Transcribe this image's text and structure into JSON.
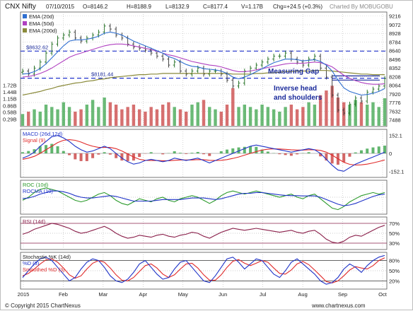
{
  "header": {
    "symbol": "CNX Nifty",
    "date": "07/10/2015",
    "open": "O=8146.2",
    "high": "H=8188.9",
    "low": "L=8132.9",
    "close": "C=8177.4",
    "volume": "V=1.17B",
    "change": "Chg=+24.5 (+0.3%)",
    "credit_top": "Charted By MOBUGOBU"
  },
  "footer": {
    "copyright": "© Copyright 2015 ChartNexus",
    "brand": "www.chartnexus.com"
  },
  "colors": {
    "ema20": "#2f6fd0",
    "ema50": "#b040c0",
    "ema200": "#8a8a3a",
    "bar_up": "#3aa34a",
    "bar_down": "#c84040",
    "macd": "#1f33c8",
    "signal": "#e02a2a",
    "rsi": "#8a1f4a",
    "stoch_k": "#1f33c8",
    "stoch_d": "#e02a2a",
    "roc": "#2a9a2a",
    "rocma": "#1f33c8",
    "annotation": "#1a2a9a"
  },
  "chart_data": [
    {
      "type": "line",
      "panel": "price",
      "legend": [
        "EMA (20d)",
        "EMA (50d)",
        "EMA (200d)"
      ],
      "y_ticks": [
        9216,
        9072,
        8928,
        8784,
        8640,
        8496,
        8352,
        8208,
        8064,
        7920,
        7776,
        7632,
        7488
      ],
      "ylim": [
        7400,
        9260
      ],
      "volume_ticks": [
        "1.72B",
        "1.44B",
        "1.15B",
        "0.86B",
        "0.58B",
        "0.29B"
      ],
      "x_labels": [
        "2015",
        "Feb",
        "Mar",
        "Apr",
        "May",
        "Jun",
        "Jul",
        "Aug",
        "Sep",
        "Oct"
      ],
      "price_labels": [
        "$8632.62",
        "$8181.44"
      ],
      "reference_levels": [
        8632.62,
        8181.44
      ],
      "annotations": [
        "Measuring Gap",
        "Inverse head",
        "and shoulders"
      ],
      "close_approx": [
        8300,
        8250,
        8350,
        8450,
        8600,
        8750,
        8850,
        8900,
        8950,
        8850,
        8800,
        8850,
        8900,
        8950,
        9050,
        9000,
        8900,
        8850,
        8750,
        8700,
        8680,
        8650,
        8600,
        8550,
        8500,
        8400,
        8450,
        8300,
        8250,
        8300,
        8350,
        8250,
        8300,
        8300,
        8250,
        8150,
        8050,
        8100,
        8300,
        8350,
        8400,
        8450,
        8500,
        8550,
        8550,
        8600,
        8500,
        8450,
        8400,
        8500,
        8550,
        8350,
        8200,
        7900,
        7650,
        7600,
        7750,
        7850,
        7800,
        7950,
        8000,
        8050,
        8177
      ],
      "ema20_approx": [
        8250,
        8260,
        8290,
        8340,
        8420,
        8520,
        8620,
        8720,
        8800,
        8820,
        8820,
        8830,
        8850,
        8880,
        8930,
        8950,
        8930,
        8900,
        8850,
        8800,
        8760,
        8720,
        8680,
        8640,
        8600,
        8540,
        8510,
        8460,
        8410,
        8380,
        8370,
        8340,
        8330,
        8320,
        8300,
        8260,
        8200,
        8170,
        8200,
        8240,
        8290,
        8340,
        8390,
        8440,
        8470,
        8500,
        8500,
        8490,
        8470,
        8480,
        8490,
        8460,
        8400,
        8300,
        8150,
        8020,
        7960,
        7930,
        7900,
        7910,
        7930,
        7960,
        8010
      ],
      "ema50_approx": [
        8200,
        8210,
        8230,
        8260,
        8300,
        8350,
        8410,
        8470,
        8530,
        8570,
        8600,
        8630,
        8660,
        8690,
        8720,
        8740,
        8750,
        8750,
        8740,
        8720,
        8700,
        8680,
        8660,
        8630,
        8600,
        8570,
        8550,
        8520,
        8490,
        8460,
        8440,
        8420,
        8400,
        8390,
        8370,
        8340,
        8310,
        8290,
        8290,
        8300,
        8320,
        8340,
        8360,
        8380,
        8400,
        8420,
        8430,
        8430,
        8430,
        8440,
        8450,
        8440,
        8410,
        8370,
        8300,
        8230,
        8180,
        8140,
        8110,
        8090,
        8080,
        8080,
        8090
      ],
      "ema200_approx": [
        7900,
        7920,
        7940,
        7960,
        7990,
        8010,
        8040,
        8060,
        8080,
        8100,
        8110,
        8130,
        8140,
        8160,
        8170,
        8190,
        8200,
        8210,
        8220,
        8230,
        8240,
        8240,
        8250,
        8250,
        8260,
        8260,
        8260,
        8260,
        8260,
        8260,
        8260,
        8260,
        8260,
        8260,
        8260,
        8260,
        8250,
        8250,
        8250,
        8250,
        8260,
        8260,
        8270,
        8270,
        8280,
        8290,
        8290,
        8300,
        8300,
        8300,
        8310,
        8310,
        8310,
        8300,
        8290,
        8280,
        8270,
        8260,
        8250,
        8250,
        8240,
        8240,
        8240
      ],
      "volume_approx": [
        0.5,
        0.6,
        0.7,
        0.6,
        0.9,
        0.8,
        0.7,
        1.0,
        0.8,
        0.6,
        0.7,
        0.9,
        1.1,
        0.8,
        1.2,
        1.0,
        0.9,
        0.7,
        0.8,
        0.9,
        0.7,
        0.6,
        0.8,
        0.7,
        0.9,
        1.0,
        0.8,
        0.7,
        0.6,
        0.9,
        1.0,
        1.1,
        0.8,
        0.7,
        0.6,
        0.9,
        1.6,
        0.8,
        0.9,
        0.8,
        0.7,
        0.9,
        0.8,
        0.7,
        0.6,
        0.8,
        0.9,
        0.7,
        0.8,
        1.0,
        0.9,
        1.3,
        1.5,
        1.7,
        1.2,
        1.0,
        0.9,
        1.1,
        1.0,
        0.9,
        1.0,
        0.8,
        1.17
      ]
    },
    {
      "type": "line",
      "panel": "macd",
      "legend": [
        "MACD (26d,12d)",
        "Signal (9)"
      ],
      "y_ticks": [
        "152.1",
        "0",
        "-152.1"
      ],
      "ylim": [
        -190,
        190
      ],
      "macd_approx": [
        -40,
        -20,
        10,
        60,
        100,
        140,
        150,
        130,
        100,
        60,
        30,
        10,
        20,
        40,
        60,
        40,
        0,
        -40,
        -70,
        -90,
        -80,
        -60,
        -50,
        -60,
        -70,
        -60,
        -40,
        -50,
        -60,
        -50,
        -40,
        -60,
        -80,
        -60,
        -40,
        -20,
        0,
        20,
        40,
        60,
        70,
        60,
        50,
        40,
        30,
        20,
        10,
        20,
        30,
        40,
        30,
        0,
        -50,
        -100,
        -140,
        -150,
        -120,
        -90,
        -70,
        -50,
        -30,
        -10,
        10
      ],
      "signal_approx": [
        -50,
        -40,
        -25,
        0,
        30,
        60,
        90,
        110,
        115,
        110,
        95,
        75,
        60,
        50,
        50,
        50,
        40,
        20,
        -5,
        -30,
        -50,
        -58,
        -60,
        -60,
        -62,
        -62,
        -58,
        -55,
        -55,
        -55,
        -52,
        -53,
        -58,
        -60,
        -58,
        -52,
        -42,
        -30,
        -15,
        0,
        15,
        28,
        35,
        38,
        37,
        34,
        30,
        28,
        28,
        30,
        30,
        25,
        10,
        -15,
        -45,
        -75,
        -92,
        -98,
        -96,
        -90,
        -80,
        -68,
        -55
      ]
    },
    {
      "type": "line",
      "panel": "roc",
      "legend": [
        "ROC (10d)",
        "ROCMA (10)"
      ],
      "roc_approx": [
        -2,
        0,
        3,
        5,
        6,
        5,
        4,
        2,
        0,
        -2,
        -3,
        -2,
        0,
        2,
        3,
        1,
        -2,
        -4,
        -5,
        -3,
        -1,
        -2,
        -3,
        -1,
        0,
        -2,
        -3,
        -1,
        0,
        1,
        0,
        -2,
        -4,
        -2,
        1,
        3,
        4,
        3,
        2,
        3,
        4,
        3,
        2,
        1,
        0,
        1,
        2,
        0,
        -1,
        1,
        2,
        -1,
        -4,
        -7,
        -8,
        -6,
        -3,
        -1,
        1,
        2,
        3,
        2,
        3
      ],
      "rocma_approx": [
        -1,
        -0.5,
        0.5,
        2,
        3,
        4,
        4,
        3.5,
        2.5,
        1,
        0,
        -0.5,
        -0.5,
        0,
        0.5,
        1,
        0.5,
        -0.5,
        -1.5,
        -2.5,
        -2.5,
        -2.5,
        -2.5,
        -2,
        -1.5,
        -1.5,
        -1.5,
        -1.5,
        -1,
        -0.5,
        -0.5,
        -0.5,
        -1,
        -1.5,
        -1,
        0,
        1,
        2,
        2.5,
        2.5,
        3,
        3,
        2.5,
        2,
        1.5,
        1.2,
        1,
        1,
        0.8,
        0.8,
        0.8,
        0,
        -1.5,
        -3,
        -4.5,
        -5.5,
        -5,
        -4,
        -2.5,
        -1,
        0.5,
        1.5,
        2
      ]
    },
    {
      "type": "line",
      "panel": "rsi",
      "legend": [
        "RSI (14d)"
      ],
      "y_ticks": [
        "70%",
        "50%",
        "30%"
      ],
      "ylim": [
        20,
        80
      ],
      "rsi_approx": [
        48,
        52,
        58,
        62,
        66,
        70,
        68,
        64,
        60,
        54,
        50,
        52,
        56,
        60,
        64,
        58,
        50,
        44,
        40,
        42,
        46,
        44,
        42,
        46,
        48,
        44,
        42,
        46,
        48,
        52,
        50,
        44,
        40,
        46,
        52,
        56,
        60,
        58,
        56,
        58,
        60,
        58,
        56,
        54,
        52,
        54,
        56,
        52,
        50,
        54,
        56,
        48,
        38,
        32,
        30,
        34,
        42,
        46,
        44,
        50,
        56,
        62,
        66
      ]
    },
    {
      "type": "line",
      "panel": "stochastic",
      "legend": [
        "Stochastic %K (14d)",
        "%D (3)",
        "Smoothed %D (3)"
      ],
      "y_ticks": [
        "80%",
        "50%",
        "20%"
      ],
      "ylim": [
        0,
        100
      ],
      "k_approx": [
        30,
        50,
        70,
        85,
        90,
        80,
        60,
        40,
        20,
        30,
        55,
        75,
        85,
        80,
        60,
        35,
        20,
        15,
        25,
        45,
        70,
        80,
        60,
        40,
        25,
        30,
        55,
        75,
        80,
        60,
        40,
        20,
        15,
        35,
        60,
        85,
        90,
        75,
        55,
        70,
        85,
        80,
        60,
        40,
        30,
        50,
        75,
        85,
        70,
        55,
        40,
        20,
        10,
        15,
        30,
        55,
        70,
        60,
        45,
        65,
        80,
        90,
        95
      ],
      "d_approx": [
        35,
        42,
        55,
        70,
        82,
        85,
        75,
        58,
        38,
        28,
        35,
        55,
        72,
        80,
        75,
        58,
        38,
        22,
        20,
        30,
        48,
        65,
        70,
        58,
        40,
        30,
        38,
        55,
        70,
        72,
        58,
        38,
        22,
        22,
        38,
        60,
        78,
        83,
        72,
        65,
        72,
        80,
        75,
        58,
        42,
        40,
        52,
        70,
        77,
        68,
        52,
        35,
        18,
        14,
        20,
        35,
        52,
        62,
        58,
        55,
        65,
        80,
        88
      ]
    }
  ]
}
